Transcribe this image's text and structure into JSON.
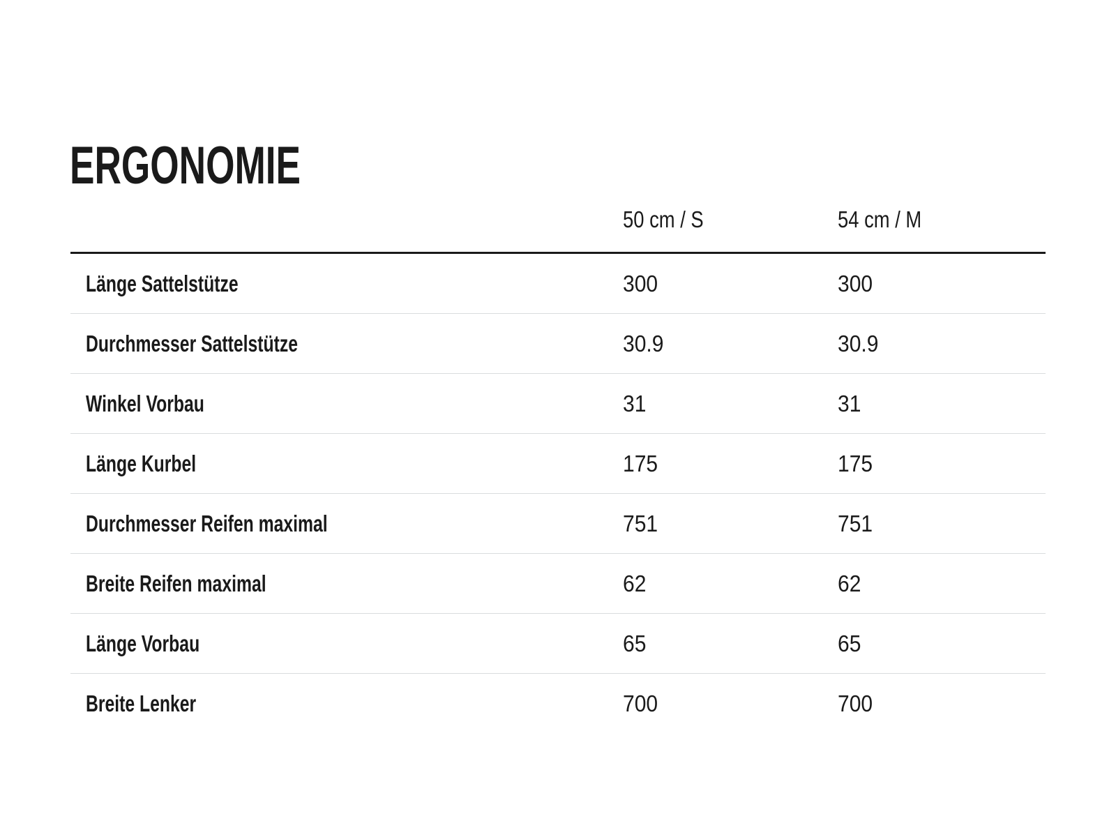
{
  "page": {
    "title": "ERGONOMIE"
  },
  "table": {
    "columns": [
      "50 cm / S",
      "54 cm / M"
    ],
    "rows": [
      {
        "label": "Länge Sattelstütze",
        "values": [
          "300",
          "300"
        ]
      },
      {
        "label": "Durchmesser Sattelstütze",
        "values": [
          "30.9",
          "30.9"
        ]
      },
      {
        "label": "Winkel Vorbau",
        "values": [
          "31",
          "31"
        ]
      },
      {
        "label": "Länge Kurbel",
        "values": [
          "175",
          "175"
        ]
      },
      {
        "label": "Durchmesser Reifen maximal",
        "values": [
          "751",
          "751"
        ]
      },
      {
        "label": "Breite Reifen maximal",
        "values": [
          "62",
          "62"
        ]
      },
      {
        "label": "Länge Vorbau",
        "values": [
          "65",
          "65"
        ]
      },
      {
        "label": "Breite Lenker",
        "values": [
          "700",
          "700"
        ]
      }
    ]
  },
  "colors": {
    "background": "#ffffff",
    "text": "#1a1a1a",
    "header_rule": "#1a1a1a",
    "row_divider": "#d9dcde"
  }
}
